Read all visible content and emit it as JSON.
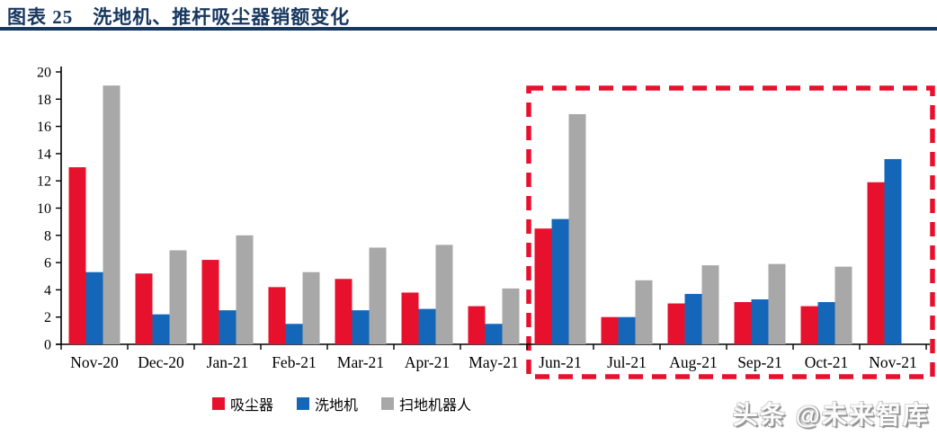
{
  "header": {
    "title": "图表 25　洗地机、推杆吸尘器销额变化"
  },
  "chart_data": {
    "type": "bar",
    "categories": [
      "Nov-20",
      "Dec-20",
      "Jan-21",
      "Feb-21",
      "Mar-21",
      "Apr-21",
      "May-21",
      "Jun-21",
      "Jul-21",
      "Aug-21",
      "Sep-21",
      "Oct-21",
      "Nov-21"
    ],
    "series": [
      {
        "name": "吸尘器",
        "color": "#e8112d",
        "values": [
          13.0,
          5.2,
          6.2,
          4.2,
          4.8,
          3.8,
          2.8,
          8.5,
          2.0,
          3.0,
          3.1,
          2.8,
          11.9
        ]
      },
      {
        "name": "洗地机",
        "color": "#1467b8",
        "values": [
          5.3,
          2.2,
          2.5,
          1.5,
          2.5,
          2.6,
          1.5,
          9.2,
          2.0,
          3.7,
          3.3,
          3.1,
          13.6
        ]
      },
      {
        "name": "扫地机器人",
        "color": "#a8a8a8",
        "values": [
          19.0,
          6.9,
          8.0,
          5.3,
          7.1,
          7.3,
          4.1,
          16.9,
          4.7,
          5.8,
          5.9,
          5.7,
          null
        ]
      }
    ],
    "title": "",
    "xlabel": "",
    "ylabel": "",
    "ylim": [
      0,
      20
    ],
    "ytick_step": 2,
    "grid": false,
    "legend_position": "bottom",
    "highlight": {
      "from": "Jun-21",
      "to": "Nov-21",
      "color": "#e8112d",
      "style": "dashed"
    },
    "axis_color": "#000000"
  },
  "watermark": {
    "text": "头条 @未来智库"
  }
}
